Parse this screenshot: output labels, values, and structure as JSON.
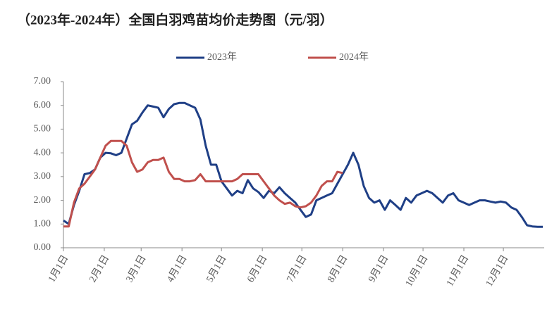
{
  "chart_data": {
    "type": "line",
    "title": "（2023年-2024年）全国白羽鸡苗均价走势图（元/羽）",
    "x": [
      0,
      4,
      8,
      12,
      16,
      20,
      24,
      28,
      32,
      36,
      40,
      44,
      48,
      52,
      56,
      60,
      64,
      68,
      72,
      76,
      80,
      84,
      88,
      92,
      96,
      100,
      104,
      108,
      112,
      116,
      120,
      124,
      128,
      132,
      136,
      140,
      144,
      148,
      152,
      156,
      160,
      164,
      168,
      172,
      176,
      180,
      184,
      188,
      192,
      196,
      200,
      204,
      208,
      212,
      216,
      220,
      224,
      228,
      232,
      236,
      240,
      244,
      248,
      252,
      256,
      260,
      264,
      268,
      272,
      276,
      280,
      284,
      288,
      292,
      296,
      300,
      304,
      308,
      312,
      316,
      320,
      324,
      328,
      332,
      336,
      340,
      344,
      348,
      352,
      356,
      360,
      364
    ],
    "series": [
      {
        "name": "2023年",
        "color": "#1f3f86",
        "values": [
          1.15,
          1.0,
          1.8,
          2.4,
          3.1,
          3.15,
          3.3,
          3.8,
          4.0,
          3.98,
          3.9,
          4.0,
          4.6,
          5.2,
          5.35,
          5.7,
          6.0,
          5.95,
          5.9,
          5.5,
          5.85,
          6.05,
          6.1,
          6.1,
          6.0,
          5.9,
          5.4,
          4.3,
          3.5,
          3.5,
          2.8,
          2.5,
          2.2,
          2.4,
          2.3,
          2.85,
          2.5,
          2.35,
          2.1,
          2.4,
          2.3,
          2.55,
          2.3,
          2.1,
          1.9,
          1.6,
          1.3,
          1.4,
          2.0,
          2.1,
          2.2,
          2.3,
          2.7,
          3.1,
          3.5,
          4.0,
          3.5,
          2.6,
          2.1,
          1.9,
          2.0,
          1.6,
          2.0,
          1.8,
          1.6,
          2.1,
          1.9,
          2.2,
          2.3,
          2.4,
          2.3,
          2.1,
          1.9,
          2.2,
          2.3,
          2.0,
          1.9,
          1.8,
          1.9,
          2.0,
          2.0,
          1.95,
          1.9,
          1.95,
          1.9,
          1.7,
          1.6,
          1.3,
          0.95,
          0.9,
          0.88,
          0.88
        ]
      },
      {
        "name": "2024年",
        "color": "#c0504d",
        "values": [
          0.9,
          0.9,
          1.9,
          2.5,
          2.7,
          3.0,
          3.3,
          3.8,
          4.3,
          4.5,
          4.5,
          4.5,
          4.3,
          3.6,
          3.2,
          3.3,
          3.6,
          3.7,
          3.7,
          3.8,
          3.2,
          2.9,
          2.9,
          2.8,
          2.8,
          2.85,
          3.1,
          2.8,
          2.8,
          2.8,
          2.8,
          2.8,
          2.8,
          2.9,
          3.1,
          3.1,
          3.1,
          3.1,
          2.8,
          2.5,
          2.2,
          2.0,
          1.85,
          1.9,
          1.75,
          1.7,
          1.75,
          1.9,
          2.2,
          2.6,
          2.8,
          2.8,
          3.2,
          3.15,
          null,
          null,
          null,
          null,
          null,
          null,
          null,
          null,
          null,
          null,
          null,
          null,
          null,
          null,
          null,
          null,
          null,
          null,
          null,
          null,
          null,
          null,
          null,
          null,
          null,
          null,
          null,
          null,
          null,
          null,
          null,
          null,
          null,
          null,
          null,
          null,
          null,
          null
        ]
      }
    ],
    "xlim": [
      0,
      365
    ],
    "xticks": [
      {
        "value": 0,
        "label": "1月1日"
      },
      {
        "value": 31,
        "label": "2月1日"
      },
      {
        "value": 59,
        "label": "3月1日"
      },
      {
        "value": 90,
        "label": "4月1日"
      },
      {
        "value": 120,
        "label": "5月1日"
      },
      {
        "value": 151,
        "label": "6月1日"
      },
      {
        "value": 181,
        "label": "7月1日"
      },
      {
        "value": 212,
        "label": "8月1日"
      },
      {
        "value": 243,
        "label": "9月1日"
      },
      {
        "value": 273,
        "label": "10月1日"
      },
      {
        "value": 304,
        "label": "11月1日"
      },
      {
        "value": 334,
        "label": "12月1日"
      }
    ],
    "ylim": [
      0,
      7
    ],
    "yticks": [
      {
        "value": 0,
        "label": "0.00"
      },
      {
        "value": 1,
        "label": "1.00"
      },
      {
        "value": 2,
        "label": "2.00"
      },
      {
        "value": 3,
        "label": "3.00"
      },
      {
        "value": 4,
        "label": "4.00"
      },
      {
        "value": 5,
        "label": "5.00"
      },
      {
        "value": 6,
        "label": "6.00"
      },
      {
        "value": 7,
        "label": "7.00"
      }
    ],
    "legend": "top"
  }
}
